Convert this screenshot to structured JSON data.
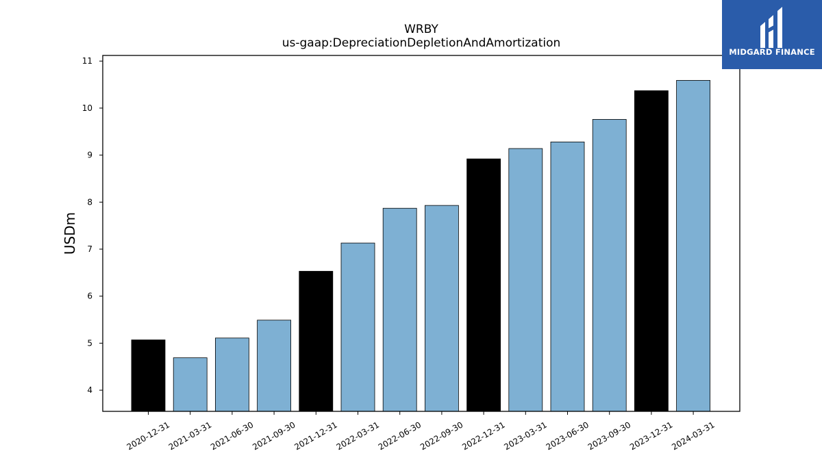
{
  "brand": {
    "name": "MIDGARD FINANCE",
    "color": "#2a5caa"
  },
  "chart_data": {
    "type": "bar",
    "title": "WRBY",
    "subtitle": "us-gaap:DepreciationDepletionAndAmortization",
    "xlabel": "",
    "ylabel": "USDm",
    "ylim": [
      3.55,
      11.12
    ],
    "yticks": [
      4,
      5,
      6,
      7,
      8,
      9,
      10,
      11
    ],
    "grid": false,
    "categories": [
      "2020-12-31",
      "2021-03-31",
      "2021-06-30",
      "2021-09-30",
      "2021-12-31",
      "2022-03-31",
      "2022-06-30",
      "2022-09-30",
      "2022-12-31",
      "2023-03-31",
      "2023-06-30",
      "2023-09-30",
      "2023-12-31",
      "2024-03-31"
    ],
    "values": [
      5.07,
      4.69,
      5.11,
      5.49,
      6.53,
      7.13,
      7.87,
      7.93,
      8.92,
      9.14,
      9.28,
      9.76,
      10.37,
      10.59
    ],
    "bar_colors": [
      "#000000",
      "#7eb0d3",
      "#7eb0d3",
      "#7eb0d3",
      "#000000",
      "#7eb0d3",
      "#7eb0d3",
      "#7eb0d3",
      "#000000",
      "#7eb0d3",
      "#7eb0d3",
      "#7eb0d3",
      "#000000",
      "#7eb0d3"
    ]
  }
}
